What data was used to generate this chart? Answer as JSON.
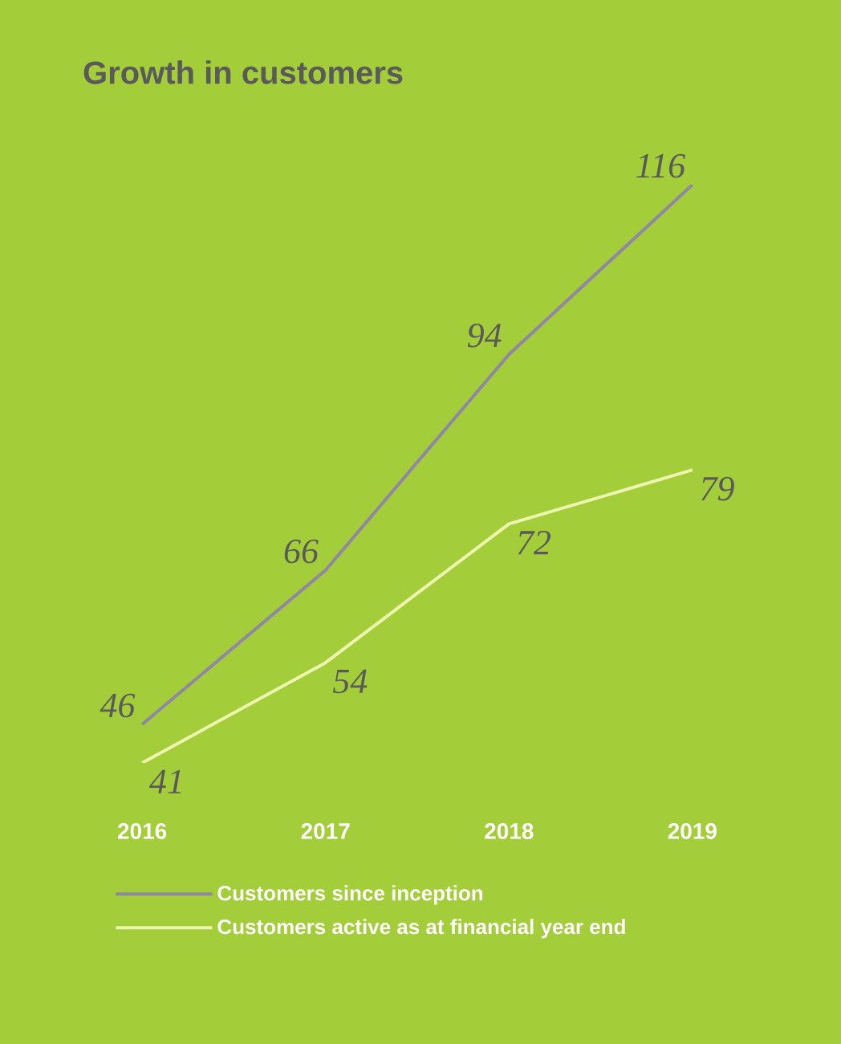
{
  "chart_data": {
    "type": "line",
    "title": "Growth in customers",
    "categories": [
      "2016",
      "2017",
      "2018",
      "2019"
    ],
    "series": [
      {
        "name": "Customers since inception",
        "color": "#8f86a8",
        "values": [
          46,
          66,
          94,
          116
        ]
      },
      {
        "name": "Customers active as at financial year end",
        "color": "#eef5b0",
        "values": [
          41,
          54,
          72,
          79
        ]
      }
    ],
    "data_labels": true,
    "legend": "bottom",
    "marker": "none",
    "line_style": "solid",
    "grid": false
  }
}
